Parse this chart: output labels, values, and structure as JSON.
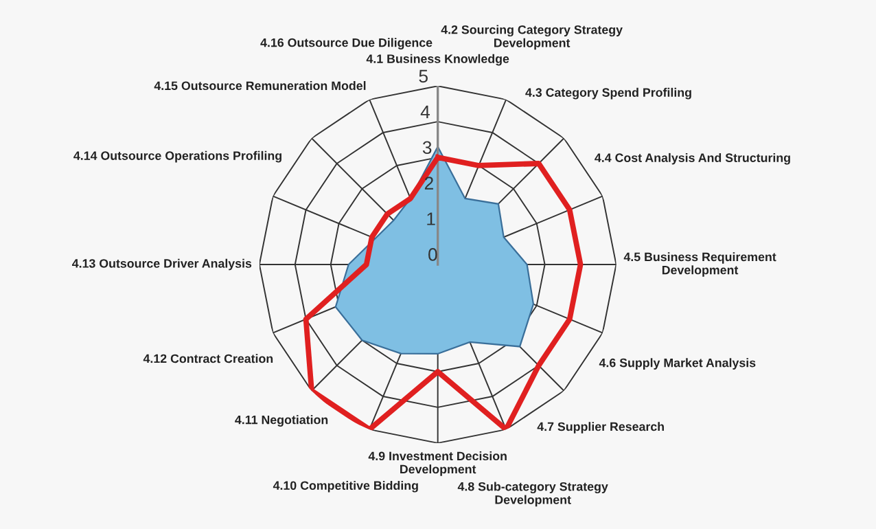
{
  "chart_data": {
    "type": "radar",
    "categories": [
      "4.1 Business Knowledge",
      "4.2 Sourcing Category Strategy\nDevelopment",
      "4.3 Category Spend Profiling",
      "4.4 Cost Analysis And Structuring",
      "4.5 Business Requirement\nDevelopment",
      "4.6 Supply Market Analysis",
      "4.7 Supplier Research",
      "4.8 Sub-category Strategy\nDevelopment",
      "4.9 Investment Decision\nDevelopment",
      "4.10 Competitive Bidding",
      "4.11 Negotiation",
      "4.12 Contract Creation",
      "4.13 Outsource Driver Analysis",
      "4.14 Outsource Operations Profiling",
      "4.15 Outsource Remuneration Model",
      "4.16 Outsource Due Diligence"
    ],
    "series": [
      {
        "type": "area",
        "color": "#7fbfe3",
        "values": [
          3.3,
          2.0,
          2.4,
          2.0,
          2.5,
          2.9,
          3.25,
          2.35,
          2.5,
          2.7,
          3.0,
          3.1,
          2.5,
          1.9,
          1.75,
          2.0
        ]
      },
      {
        "color": "#e02020",
        "values": [
          3,
          3,
          4,
          4,
          4,
          4,
          4,
          5,
          3,
          5,
          5,
          4,
          2,
          2,
          2,
          2
        ]
      }
    ],
    "ylim": [
      0,
      5
    ],
    "yticks": [
      0,
      1,
      2,
      3,
      4,
      5
    ],
    "grid": true
  }
}
